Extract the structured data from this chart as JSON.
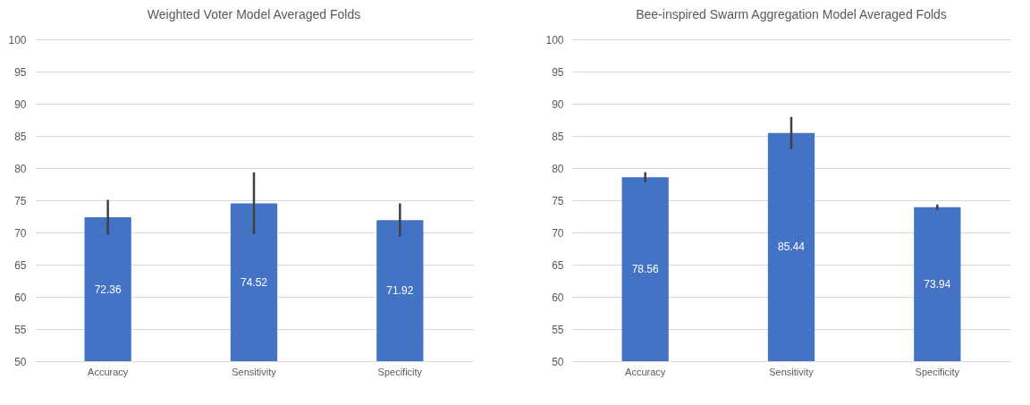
{
  "chart_data": [
    {
      "type": "bar",
      "title": "Weighted Voter Model Averaged Folds",
      "categories": [
        "Accuracy",
        "Sensitivity",
        "Specificity"
      ],
      "color": "#4472c4",
      "values": [
        72.36,
        74.52,
        71.92
      ],
      "errors": [
        2.7,
        4.8,
        2.6
      ],
      "ylim": [
        50,
        100
      ],
      "yticks": [
        50,
        55,
        60,
        65,
        70,
        75,
        80,
        85,
        90,
        95,
        100
      ],
      "grid": "y",
      "data_labels": true
    },
    {
      "type": "bar",
      "title": "Bee-inspired Swarm Aggregation Model Averaged Folds",
      "categories": [
        "Accuracy",
        "Sensitivity",
        "Specificity"
      ],
      "color": "#4472c4",
      "values": [
        78.56,
        85.44,
        73.94
      ],
      "errors": [
        0.8,
        2.5,
        0.4
      ],
      "ylim": [
        50,
        100
      ],
      "yticks": [
        50,
        55,
        60,
        65,
        70,
        75,
        80,
        85,
        90,
        95,
        100
      ],
      "grid": "y",
      "data_labels": true
    }
  ]
}
